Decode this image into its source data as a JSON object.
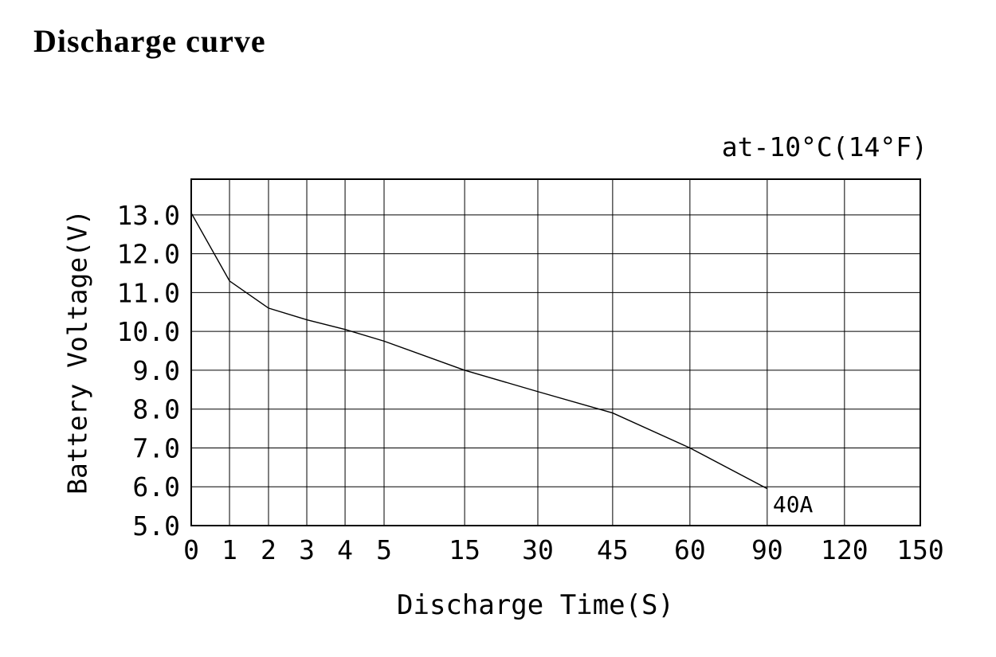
{
  "chart_data": {
    "type": "line",
    "title": "Discharge curve",
    "annotation": "at-10°C(14°F)",
    "xlabel": "Discharge Time(S)",
    "ylabel": "Battery Voltage(V)",
    "grid": true,
    "ylim": [
      5,
      13.92
    ],
    "y_ticks": [
      {
        "label": "13.0",
        "value": 13
      },
      {
        "label": "12.0",
        "value": 12
      },
      {
        "label": "11.0",
        "value": 11
      },
      {
        "label": "10.0",
        "value": 10
      },
      {
        "label": "9.0",
        "value": 9
      },
      {
        "label": "8.0",
        "value": 8
      },
      {
        "label": "7.0",
        "value": 7
      },
      {
        "label": "6.0",
        "value": 6
      },
      {
        "label": "5.0",
        "value": 5
      }
    ],
    "x_ticks": [
      {
        "label": "0",
        "value": 0,
        "pos": 0.0
      },
      {
        "label": "1",
        "value": 1,
        "pos": 0.0525
      },
      {
        "label": "2",
        "value": 2,
        "pos": 0.106
      },
      {
        "label": "3",
        "value": 3,
        "pos": 0.1585
      },
      {
        "label": "4",
        "value": 4,
        "pos": 0.211
      },
      {
        "label": "5",
        "value": 5,
        "pos": 0.2645
      },
      {
        "label": "15",
        "value": 15,
        "pos": 0.375
      },
      {
        "label": "30",
        "value": 30,
        "pos": 0.4754
      },
      {
        "label": "45",
        "value": 45,
        "pos": 0.578
      },
      {
        "label": "60",
        "value": 60,
        "pos": 0.684
      },
      {
        "label": "90",
        "value": 90,
        "pos": 0.79
      },
      {
        "label": "120",
        "value": 120,
        "pos": 0.896
      },
      {
        "label": "150",
        "value": 150,
        "pos": 1.0
      }
    ],
    "series": [
      {
        "name": "40A",
        "points": [
          {
            "x": 0,
            "pos": 0.0,
            "v": 13.05
          },
          {
            "x": 1,
            "pos": 0.0525,
            "v": 11.3
          },
          {
            "x": 2,
            "pos": 0.106,
            "v": 10.6
          },
          {
            "x": 3,
            "pos": 0.1585,
            "v": 10.3
          },
          {
            "x": 4,
            "pos": 0.211,
            "v": 10.05
          },
          {
            "x": 5,
            "pos": 0.2645,
            "v": 9.75
          },
          {
            "x": 15,
            "pos": 0.375,
            "v": 9.0
          },
          {
            "x": 30,
            "pos": 0.4754,
            "v": 8.45
          },
          {
            "x": 45,
            "pos": 0.578,
            "v": 7.9
          },
          {
            "x": 60,
            "pos": 0.684,
            "v": 7.0
          },
          {
            "x": 90,
            "pos": 0.79,
            "v": 5.95
          }
        ]
      }
    ]
  }
}
